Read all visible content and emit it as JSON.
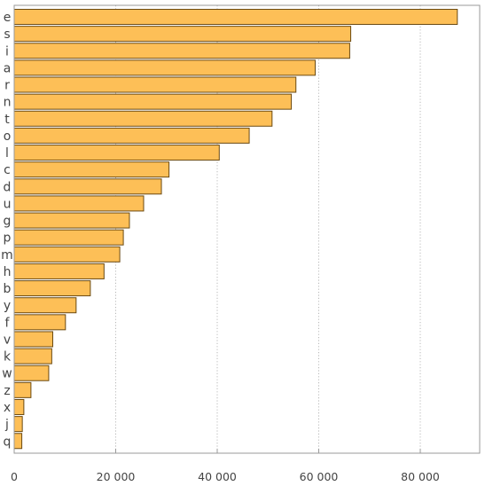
{
  "chart_data": {
    "type": "bar",
    "orientation": "horizontal",
    "categories": [
      "e",
      "s",
      "i",
      "a",
      "r",
      "n",
      "t",
      "o",
      "l",
      "c",
      "d",
      "u",
      "g",
      "p",
      "m",
      "h",
      "b",
      "y",
      "f",
      "v",
      "k",
      "w",
      "z",
      "x",
      "j",
      "q"
    ],
    "values": [
      87300,
      66300,
      66100,
      59300,
      55500,
      54600,
      50800,
      46300,
      40400,
      30500,
      29000,
      25500,
      22700,
      21500,
      20800,
      17700,
      15000,
      12200,
      10100,
      7600,
      7400,
      6800,
      3300,
      1900,
      1600,
      1500
    ],
    "xlim": [
      0,
      92000
    ],
    "x_ticks": [
      20000,
      40000,
      60000,
      80000
    ],
    "x_tick_labels": [
      "20 000",
      "40 000",
      "60 000",
      "80 000"
    ],
    "grid": "vertical dotted",
    "colors": {
      "bar_fill": "#fdbf57",
      "bar_edge": "#6b4a12",
      "frame": "#999999",
      "text": "#444444"
    },
    "title": "",
    "xlabel": "",
    "ylabel": ""
  }
}
